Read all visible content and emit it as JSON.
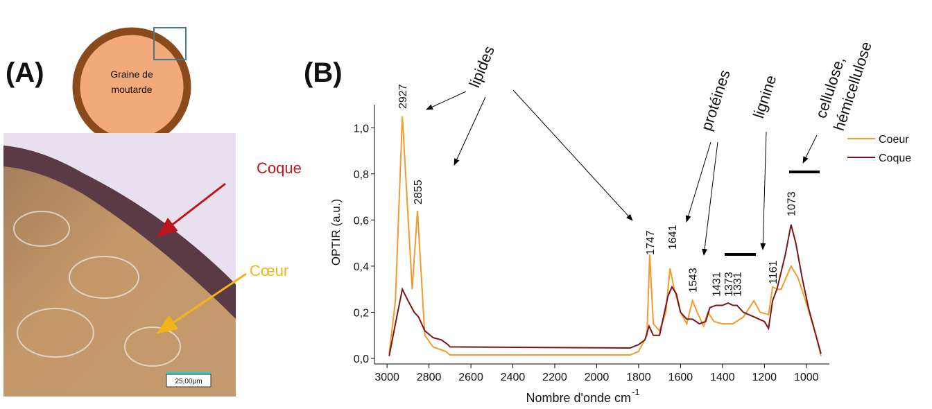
{
  "panel_a": {
    "label": "(A)",
    "seed_text_1": "Graine de",
    "seed_text_2": "moutarde",
    "coque": "Coque",
    "coeur": "Cœur",
    "scale": "25,00µm"
  },
  "chart_data": {
    "type": "line",
    "panel_label": "(B)",
    "x_label": "Nombre d'onde cm",
    "x_label_sup": "-1",
    "y_label": "OPTIR (a.u.)",
    "xlim": [
      3060,
      890
    ],
    "ylim": [
      0,
      1.1
    ],
    "xticks": [
      3000,
      2800,
      2600,
      2400,
      2200,
      2000,
      1800,
      1600,
      1400,
      1200,
      1000
    ],
    "yticks": [
      {
        "value": 0,
        "label": "0,0"
      },
      {
        "value": 0.2,
        "label": "0,2"
      },
      {
        "value": 0.4,
        "label": "0,4"
      },
      {
        "value": 0.6,
        "label": "0,6"
      },
      {
        "value": 0.8,
        "label": "0,8"
      },
      {
        "value": 1.0,
        "label": "1,0"
      }
    ],
    "legend": "upper right",
    "series": [
      {
        "name": "Coeur",
        "color": "#f39a2c",
        "x": [
          2990,
          2960,
          2927,
          2880,
          2855,
          2820,
          2780,
          2720,
          2700,
          1840,
          1800,
          1760,
          1747,
          1730,
          1700,
          1670,
          1650,
          1630,
          1600,
          1570,
          1543,
          1520,
          1490,
          1470,
          1440,
          1400,
          1350,
          1300,
          1250,
          1220,
          1180,
          1161,
          1140,
          1120,
          1073,
          1040,
          1000,
          960,
          940,
          930
        ],
        "values": [
          0.02,
          0.25,
          1.05,
          0.3,
          0.64,
          0.1,
          0.05,
          0.03,
          0.015,
          0.015,
          0.03,
          0.1,
          0.45,
          0.15,
          0.12,
          0.2,
          0.39,
          0.3,
          0.2,
          0.15,
          0.25,
          0.2,
          0.14,
          0.2,
          0.16,
          0.15,
          0.15,
          0.18,
          0.25,
          0.2,
          0.19,
          0.31,
          0.3,
          0.3,
          0.4,
          0.35,
          0.24,
          0.12,
          0.05,
          0.01
        ]
      },
      {
        "name": "Coque",
        "color": "#7a1416",
        "x": [
          2990,
          2960,
          2927,
          2900,
          2870,
          2850,
          2820,
          2780,
          2740,
          2710,
          2700,
          1840,
          1800,
          1770,
          1750,
          1730,
          1700,
          1660,
          1641,
          1620,
          1600,
          1570,
          1543,
          1510,
          1480,
          1460,
          1431,
          1400,
          1373,
          1350,
          1331,
          1300,
          1250,
          1200,
          1180,
          1161,
          1140,
          1100,
          1073,
          1050,
          1020,
          990,
          960,
          930
        ],
        "values": [
          0.01,
          0.15,
          0.3,
          0.25,
          0.2,
          0.18,
          0.12,
          0.09,
          0.08,
          0.06,
          0.05,
          0.045,
          0.06,
          0.08,
          0.14,
          0.1,
          0.1,
          0.27,
          0.31,
          0.28,
          0.2,
          0.17,
          0.17,
          0.15,
          0.16,
          0.22,
          0.23,
          0.23,
          0.24,
          0.23,
          0.23,
          0.2,
          0.18,
          0.16,
          0.13,
          0.25,
          0.3,
          0.45,
          0.58,
          0.5,
          0.35,
          0.22,
          0.12,
          0.02
        ]
      }
    ],
    "peak_labels": [
      2927,
      2855,
      1747,
      1641,
      1543,
      1431,
      1373,
      1331,
      1161,
      1073
    ],
    "groups": [
      "lipides",
      "protéines",
      "lignine",
      "cellulose,",
      "hémicellulose"
    ]
  }
}
